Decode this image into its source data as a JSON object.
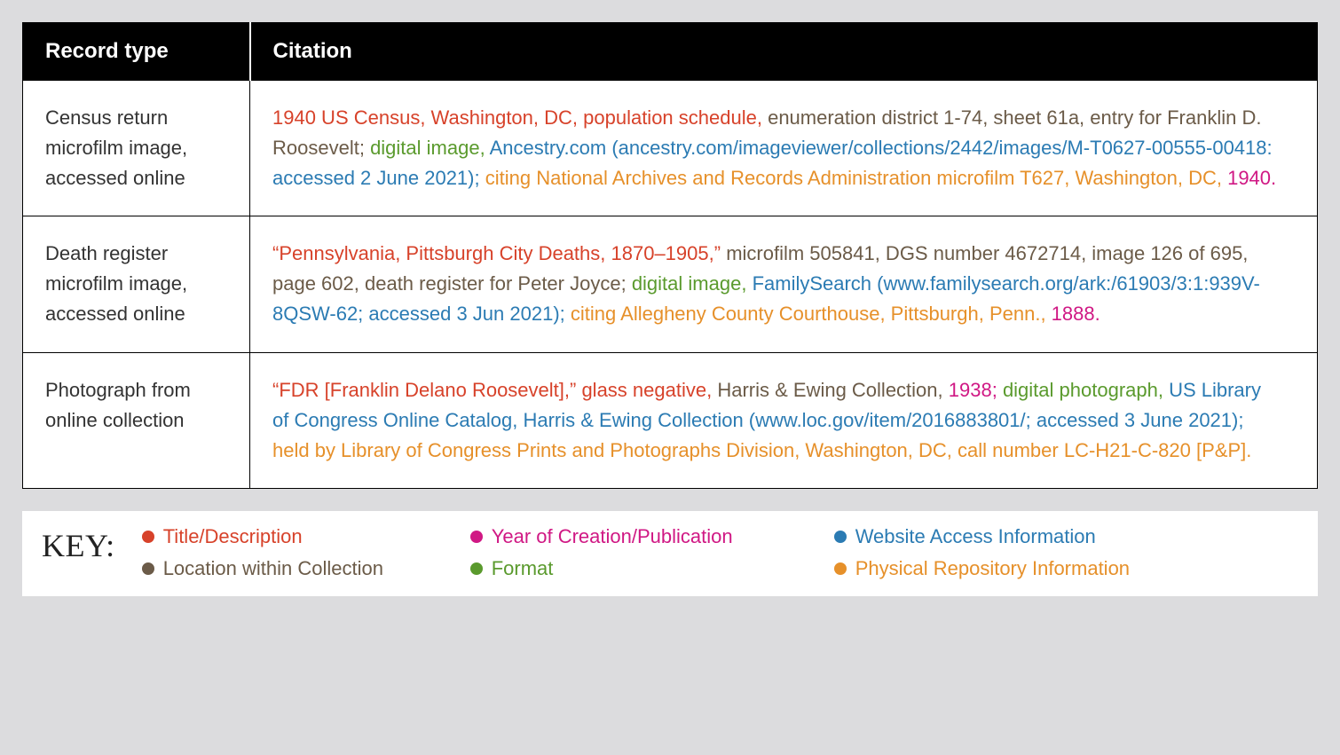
{
  "colors": {
    "title": "#d7422a",
    "year": "#d01884",
    "web": "#2b7bb3",
    "location": "#6b5b48",
    "format": "#5a9a2d",
    "repository": "#e6902a",
    "header_bg": "#000000",
    "header_fg": "#ffffff",
    "page_bg": "#dcdcde",
    "cell_bg": "#ffffff",
    "body_text": "#3d3d3d"
  },
  "headers": {
    "col1": "Record type",
    "col2": "Citation"
  },
  "rows": [
    {
      "type": "Census return microfilm image, accessed online",
      "parts": {
        "title": "1940 US Census, Washington, DC, population schedule, ",
        "loc": "enumeration district 1-74, sheet 61a, entry for Franklin D. Roosevelt; ",
        "format": "digital image, ",
        "web": "Ancestry.com (ancestry.com/imageviewer/collections/2442/images/M-T0627-00555-00418: accessed 2 June 2021); ",
        "repo": "citing National Archives and Records Administration microfilm T627, Washington, DC, ",
        "year": "1940."
      }
    },
    {
      "type": "Death register microfilm image, accessed online",
      "parts": {
        "title": "“Pennsylvania, Pittsburgh City Deaths, 1870–1905,” ",
        "loc": "microfilm 505841, DGS number 4672714, image 126 of 695, page 602, death register for Peter Joyce; ",
        "format": "digital image, ",
        "web": "FamilySearch (www.familysearch.org/ark:/61903/3:1:939V-8QSW-62; accessed 3 Jun 2021); ",
        "repo": "citing Allegheny County Courthouse, Pittsburgh, Penn., ",
        "year": "1888."
      }
    },
    {
      "type": "Photograph from online collection",
      "parts": {
        "title": "“FDR [Franklin Delano Roosevelt],” glass negative, ",
        "loc": "Harris & Ewing Collection, ",
        "year": "1938; ",
        "format": "digital photograph, ",
        "web": "US Library of Congress Online Catalog, Harris & Ewing Collection (www.loc.gov/item/2016883801/; accessed 3 June 2021); ",
        "repo": "held by Library of Congress Prints and Photographs Division, Washington, DC, call number LC-H21-C-820 [P&P]."
      }
    }
  ],
  "key": {
    "label": "KEY:",
    "items": {
      "title": "Title/Description",
      "year": "Year of Creation/Publication",
      "web": "Website Access Information",
      "location": "Location within Collection",
      "format": "Format",
      "repository": "Physical Repository Information"
    }
  }
}
